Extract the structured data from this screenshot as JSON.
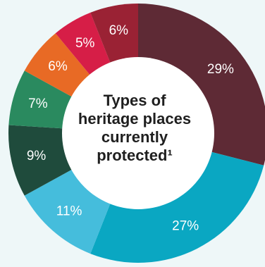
{
  "chart_data": {
    "type": "pie",
    "donut": true,
    "title_lines": [
      "Types of",
      "heritage places",
      "currently",
      "protected¹"
    ],
    "slices": [
      {
        "label": "29%",
        "value": 29,
        "color": "#5e2a35"
      },
      {
        "label": "27%",
        "value": 27,
        "color": "#0aa7c2"
      },
      {
        "label": "11%",
        "value": 11,
        "color": "#45bddc"
      },
      {
        "label": "9%",
        "value": 9,
        "color": "#1f4b3c"
      },
      {
        "label": "7%",
        "value": 7,
        "color": "#2a8a5f"
      },
      {
        "label": "6%",
        "value": 6,
        "color": "#e86a25"
      },
      {
        "label": "5%",
        "value": 5,
        "color": "#d61e47"
      },
      {
        "label": "6%",
        "value": 6,
        "color": "#9a2234"
      }
    ]
  }
}
